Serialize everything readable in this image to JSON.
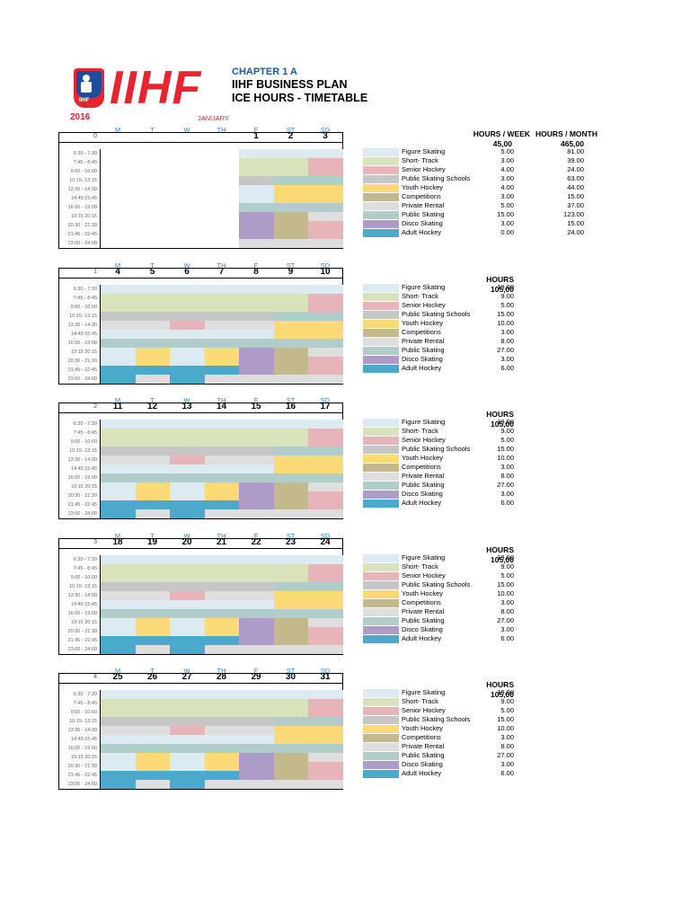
{
  "header": {
    "logo_text": "IIHF",
    "logo_small": "IIHF",
    "chapter": "CHAPTER 1 A",
    "title1": "IIHF BUSINESS PLAN",
    "title2": "ICE HOURS - TIMETABLE",
    "year": "2016",
    "month": "JANUARY"
  },
  "day_headers": [
    "M",
    "T",
    "W",
    "TH",
    "F",
    "ST",
    "SD"
  ],
  "time_slots": [
    "6:30 - 7:30",
    "7:45 - 8:45",
    "9:00 - 10:00",
    "10:15- 13:15",
    "13:30 - 14:30",
    "14:45:15:45",
    "16:00 - 19:00",
    "19:15 20:15",
    "20:30 - 21:30",
    "21:45 - 22:45",
    "23:00 - 24:00"
  ],
  "colors": {
    "FS": "#dcebf1",
    "ST": "#d8e2bb",
    "SH": "#e7b5b9",
    "PSS": "#c6c6c6",
    "YH": "#fcd977",
    "CO": "#c4b98c",
    "PR": "#dedede",
    "PS": "#b1cdca",
    "DS": "#ae9cc8",
    "AH": "#4baacb"
  },
  "legend_labels": [
    "Figure Skating",
    "Short- Track",
    "Senior Hockey",
    "Public Skating Schools",
    "Youth Hockey",
    "Competitions",
    "Private Rental",
    "Public Skating",
    "Disco Skating",
    "Adult Hockey"
  ],
  "legend_keys": [
    "FS",
    "ST",
    "SH",
    "PSS",
    "YH",
    "CO",
    "PR",
    "PS",
    "DS",
    "AH"
  ],
  "weeks": [
    {
      "week_no": "0",
      "dates": [
        "",
        "",
        "",
        "",
        "1",
        "2",
        "3"
      ],
      "summary_header": [
        "HOURS / WEEK",
        "HOURS / MONTH"
      ],
      "summary_total": [
        "45,00",
        "465,00"
      ],
      "legend_values": [
        [
          "5.00",
          "81.00"
        ],
        [
          "3.00",
          "39.00"
        ],
        [
          "4.00",
          "24.00"
        ],
        [
          "3.00",
          "63.00"
        ],
        [
          "4.00",
          "44.00"
        ],
        [
          "3.00",
          "15.00"
        ],
        [
          "5.00",
          "37.00"
        ],
        [
          "15.00",
          "123.00"
        ],
        [
          "3.00",
          "15.00"
        ],
        [
          "0.00",
          "24.00"
        ]
      ],
      "grid": [
        [
          "",
          "",
          "",
          "",
          "FS",
          "FS",
          "FS"
        ],
        [
          "",
          "",
          "",
          "",
          "ST",
          "ST",
          "SH"
        ],
        [
          "",
          "",
          "",
          "",
          "ST",
          "ST",
          "SH"
        ],
        [
          "",
          "",
          "",
          "",
          "PSS",
          "PS",
          "PS"
        ],
        [
          "",
          "",
          "",
          "",
          "FS",
          "YH",
          "YH"
        ],
        [
          "",
          "",
          "",
          "",
          "FS",
          "YH",
          "YH"
        ],
        [
          "",
          "",
          "",
          "",
          "PS",
          "PS",
          "PS"
        ],
        [
          "",
          "",
          "",
          "",
          "DS",
          "CO",
          "PR"
        ],
        [
          "",
          "",
          "",
          "",
          "DS",
          "CO",
          "SH"
        ],
        [
          "",
          "",
          "",
          "",
          "DS",
          "CO",
          "SH"
        ],
        [
          "",
          "",
          "",
          "",
          "PR",
          "PR",
          "PR"
        ]
      ]
    },
    {
      "week_no": "1",
      "dates": [
        "4",
        "5",
        "6",
        "7",
        "8",
        "9",
        "10"
      ],
      "summary_header": [
        "HOURS"
      ],
      "summary_total": [
        "105,00"
      ],
      "legend_values": [
        [
          "19,00"
        ],
        [
          "9.00"
        ],
        [
          "5.00"
        ],
        [
          "15.00"
        ],
        [
          "10.00"
        ],
        [
          "3.00"
        ],
        [
          "8.00"
        ],
        [
          "27.00"
        ],
        [
          "3.00"
        ],
        [
          "6.00"
        ]
      ],
      "grid": [
        [
          "FS",
          "FS",
          "FS",
          "FS",
          "FS",
          "FS",
          "FS"
        ],
        [
          "ST",
          "ST",
          "ST",
          "ST",
          "ST",
          "ST",
          "SH"
        ],
        [
          "ST",
          "ST",
          "ST",
          "ST",
          "ST",
          "ST",
          "SH"
        ],
        [
          "PSS",
          "PSS",
          "PSS",
          "PSS",
          "PSS",
          "PS",
          "PS"
        ],
        [
          "PR",
          "PR",
          "SH",
          "PR",
          "PR",
          "YH",
          "YH"
        ],
        [
          "FS",
          "FS",
          "FS",
          "FS",
          "FS",
          "YH",
          "YH"
        ],
        [
          "PS",
          "PS",
          "PS",
          "PS",
          "PS",
          "PS",
          "PS"
        ],
        [
          "FS",
          "YH",
          "FS",
          "YH",
          "DS",
          "CO",
          "PR"
        ],
        [
          "FS",
          "YH",
          "FS",
          "YH",
          "DS",
          "CO",
          "SH"
        ],
        [
          "AH",
          "AH",
          "AH",
          "AH",
          "DS",
          "CO",
          "SH"
        ],
        [
          "AH",
          "PR",
          "AH",
          "PR",
          "PR",
          "PR",
          "PR"
        ]
      ]
    },
    {
      "week_no": "2",
      "dates": [
        "11",
        "12",
        "13",
        "14",
        "15",
        "16",
        "17"
      ],
      "summary_header": [
        "HOURS"
      ],
      "summary_total": [
        "105,00"
      ],
      "legend_values": [
        [
          "19.00"
        ],
        [
          "9.00"
        ],
        [
          "5.00"
        ],
        [
          "15.00"
        ],
        [
          "10.00"
        ],
        [
          "3.00"
        ],
        [
          "8.00"
        ],
        [
          "27.00"
        ],
        [
          "3.00"
        ],
        [
          "6.00"
        ]
      ],
      "grid": [
        [
          "FS",
          "FS",
          "FS",
          "FS",
          "FS",
          "FS",
          "FS"
        ],
        [
          "ST",
          "ST",
          "ST",
          "ST",
          "ST",
          "ST",
          "SH"
        ],
        [
          "ST",
          "ST",
          "ST",
          "ST",
          "ST",
          "ST",
          "SH"
        ],
        [
          "PSS",
          "PSS",
          "PSS",
          "PSS",
          "PSS",
          "PS",
          "PS"
        ],
        [
          "PR",
          "PR",
          "SH",
          "PR",
          "PR",
          "YH",
          "YH"
        ],
        [
          "FS",
          "FS",
          "FS",
          "FS",
          "FS",
          "YH",
          "YH"
        ],
        [
          "PS",
          "PS",
          "PS",
          "PS",
          "PS",
          "PS",
          "PS"
        ],
        [
          "FS",
          "YH",
          "FS",
          "YH",
          "DS",
          "CO",
          "PR"
        ],
        [
          "FS",
          "YH",
          "FS",
          "YH",
          "DS",
          "CO",
          "SH"
        ],
        [
          "AH",
          "AH",
          "AH",
          "AH",
          "DS",
          "CO",
          "SH"
        ],
        [
          "AH",
          "PR",
          "AH",
          "PR",
          "PR",
          "PR",
          "PR"
        ]
      ]
    },
    {
      "week_no": "3",
      "dates": [
        "18",
        "19",
        "20",
        "21",
        "22",
        "23",
        "24"
      ],
      "summary_header": [
        "HOURS"
      ],
      "summary_total": [
        "105,00"
      ],
      "legend_values": [
        [
          "19.00"
        ],
        [
          "9.00"
        ],
        [
          "5.00"
        ],
        [
          "15.00"
        ],
        [
          "10.00"
        ],
        [
          "3.00"
        ],
        [
          "8.00"
        ],
        [
          "27.00"
        ],
        [
          "3.00"
        ],
        [
          "6.00"
        ]
      ],
      "grid": [
        [
          "FS",
          "FS",
          "FS",
          "FS",
          "FS",
          "FS",
          "FS"
        ],
        [
          "ST",
          "ST",
          "ST",
          "ST",
          "ST",
          "ST",
          "SH"
        ],
        [
          "ST",
          "ST",
          "ST",
          "ST",
          "ST",
          "ST",
          "SH"
        ],
        [
          "PSS",
          "PSS",
          "PSS",
          "PSS",
          "PSS",
          "PS",
          "PS"
        ],
        [
          "PR",
          "PR",
          "SH",
          "PR",
          "PR",
          "YH",
          "YH"
        ],
        [
          "FS",
          "FS",
          "FS",
          "FS",
          "FS",
          "YH",
          "YH"
        ],
        [
          "PS",
          "PS",
          "PS",
          "PS",
          "PS",
          "PS",
          "PS"
        ],
        [
          "FS",
          "YH",
          "FS",
          "YH",
          "DS",
          "CO",
          "PR"
        ],
        [
          "FS",
          "YH",
          "FS",
          "YH",
          "DS",
          "CO",
          "SH"
        ],
        [
          "AH",
          "AH",
          "AH",
          "AH",
          "DS",
          "CO",
          "SH"
        ],
        [
          "AH",
          "PR",
          "AH",
          "PR",
          "PR",
          "PR",
          "PR"
        ]
      ]
    },
    {
      "week_no": "4",
      "dates": [
        "25",
        "26",
        "27",
        "28",
        "29",
        "30",
        "31"
      ],
      "summary_header": [
        "HOURS"
      ],
      "summary_total": [
        "105,00"
      ],
      "legend_values": [
        [
          "19.00"
        ],
        [
          "9.00"
        ],
        [
          "5.00"
        ],
        [
          "15.00"
        ],
        [
          "10.00"
        ],
        [
          "3.00"
        ],
        [
          "8.00"
        ],
        [
          "27.00"
        ],
        [
          "3.00"
        ],
        [
          "6.00"
        ]
      ],
      "grid": [
        [
          "FS",
          "FS",
          "FS",
          "FS",
          "FS",
          "FS",
          "FS"
        ],
        [
          "ST",
          "ST",
          "ST",
          "ST",
          "ST",
          "ST",
          "SH"
        ],
        [
          "ST",
          "ST",
          "ST",
          "ST",
          "ST",
          "ST",
          "SH"
        ],
        [
          "PSS",
          "PSS",
          "PSS",
          "PSS",
          "PSS",
          "PS",
          "PS"
        ],
        [
          "PR",
          "PR",
          "SH",
          "PR",
          "PR",
          "YH",
          "YH"
        ],
        [
          "FS",
          "FS",
          "FS",
          "FS",
          "FS",
          "YH",
          "YH"
        ],
        [
          "PS",
          "PS",
          "PS",
          "PS",
          "PS",
          "PS",
          "PS"
        ],
        [
          "FS",
          "YH",
          "FS",
          "YH",
          "DS",
          "CO",
          "PR"
        ],
        [
          "FS",
          "YH",
          "FS",
          "YH",
          "DS",
          "CO",
          "SH"
        ],
        [
          "AH",
          "AH",
          "AH",
          "AH",
          "DS",
          "CO",
          "SH"
        ],
        [
          "AH",
          "PR",
          "AH",
          "PR",
          "PR",
          "PR",
          "PR"
        ]
      ]
    }
  ]
}
